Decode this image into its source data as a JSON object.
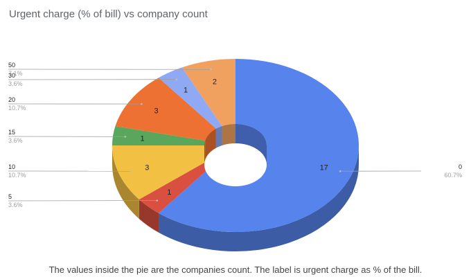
{
  "chart_data": {
    "type": "pie",
    "title": "Urgent charge (% of bill) vs company count",
    "caption": "The values inside the pie are the companies count. The label is urgent charge as % of the bill.",
    "donut": true,
    "three_d": true,
    "slices": [
      {
        "label": "0",
        "percent": "60.7%",
        "value": 17,
        "color": "#5783ed"
      },
      {
        "label": "5",
        "percent": "3.6%",
        "value": 1,
        "color": "#d95040"
      },
      {
        "label": "10",
        "percent": "10.7%",
        "value": 3,
        "color": "#f2c043"
      },
      {
        "label": "15",
        "percent": "3.6%",
        "value": 1,
        "color": "#59a65c"
      },
      {
        "label": "20",
        "percent": "10.7%",
        "value": 3,
        "color": "#ed7132"
      },
      {
        "label": "30",
        "percent": "3.6%",
        "value": 1,
        "color": "#8fa9f5"
      },
      {
        "label": "50",
        "percent": "7.1%",
        "value": 2,
        "color": "#f0a160"
      }
    ]
  }
}
